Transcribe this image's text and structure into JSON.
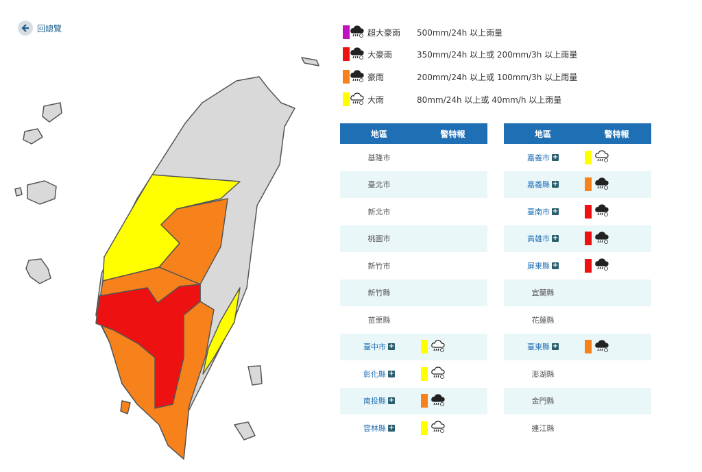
{
  "back_label": "回總覽",
  "legend": [
    {
      "name": "超大豪雨",
      "description": "500mm/24h 以上雨量",
      "color": "#c010c0",
      "icon": "filled"
    },
    {
      "name": "大豪雨",
      "description": "350mm/24h 以上或 200mm/3h 以上雨量",
      "color": "#ee1111",
      "icon": "filled"
    },
    {
      "name": "豪雨",
      "description": "200mm/24h 以上或 100mm/3h 以上雨量",
      "color": "#f7821b",
      "icon": "filled"
    },
    {
      "name": "大雨",
      "description": "80mm/24h 以上或 40mm/h 以上雨量",
      "color": "#ffff00",
      "icon": "outline"
    }
  ],
  "tables": [
    {
      "headers": [
        "地區",
        "警特報"
      ],
      "rows": [
        {
          "name": "基隆市",
          "warning_color": null
        },
        {
          "name": "臺北市",
          "warning_color": null
        },
        {
          "name": "新北市",
          "warning_color": null
        },
        {
          "name": "桃園市",
          "warning_color": null
        },
        {
          "name": "新竹市",
          "warning_color": null
        },
        {
          "name": "新竹縣",
          "warning_color": null
        },
        {
          "name": "苗栗縣",
          "warning_color": null
        },
        {
          "name": "臺中市",
          "warning_color": "#ffff00"
        },
        {
          "name": "彰化縣",
          "warning_color": "#ffff00"
        },
        {
          "name": "南投縣",
          "warning_color": "#f7821b"
        },
        {
          "name": "雲林縣",
          "warning_color": "#ffff00"
        }
      ]
    },
    {
      "headers": [
        "地區",
        "警特報"
      ],
      "rows": [
        {
          "name": "嘉義市",
          "warning_color": "#ffff00"
        },
        {
          "name": "嘉義縣",
          "warning_color": "#f7821b"
        },
        {
          "name": "臺南市",
          "warning_color": "#ee1111"
        },
        {
          "name": "高雄市",
          "warning_color": "#ee1111"
        },
        {
          "name": "屏東縣",
          "warning_color": "#ee1111"
        },
        {
          "name": "宜蘭縣",
          "warning_color": null
        },
        {
          "name": "花蓮縣",
          "warning_color": null
        },
        {
          "name": "臺東縣",
          "warning_color": "#f7821b"
        },
        {
          "name": "澎湖縣",
          "warning_color": null
        },
        {
          "name": "金門縣",
          "warning_color": null
        },
        {
          "name": "連江縣",
          "warning_color": null
        }
      ]
    }
  ]
}
